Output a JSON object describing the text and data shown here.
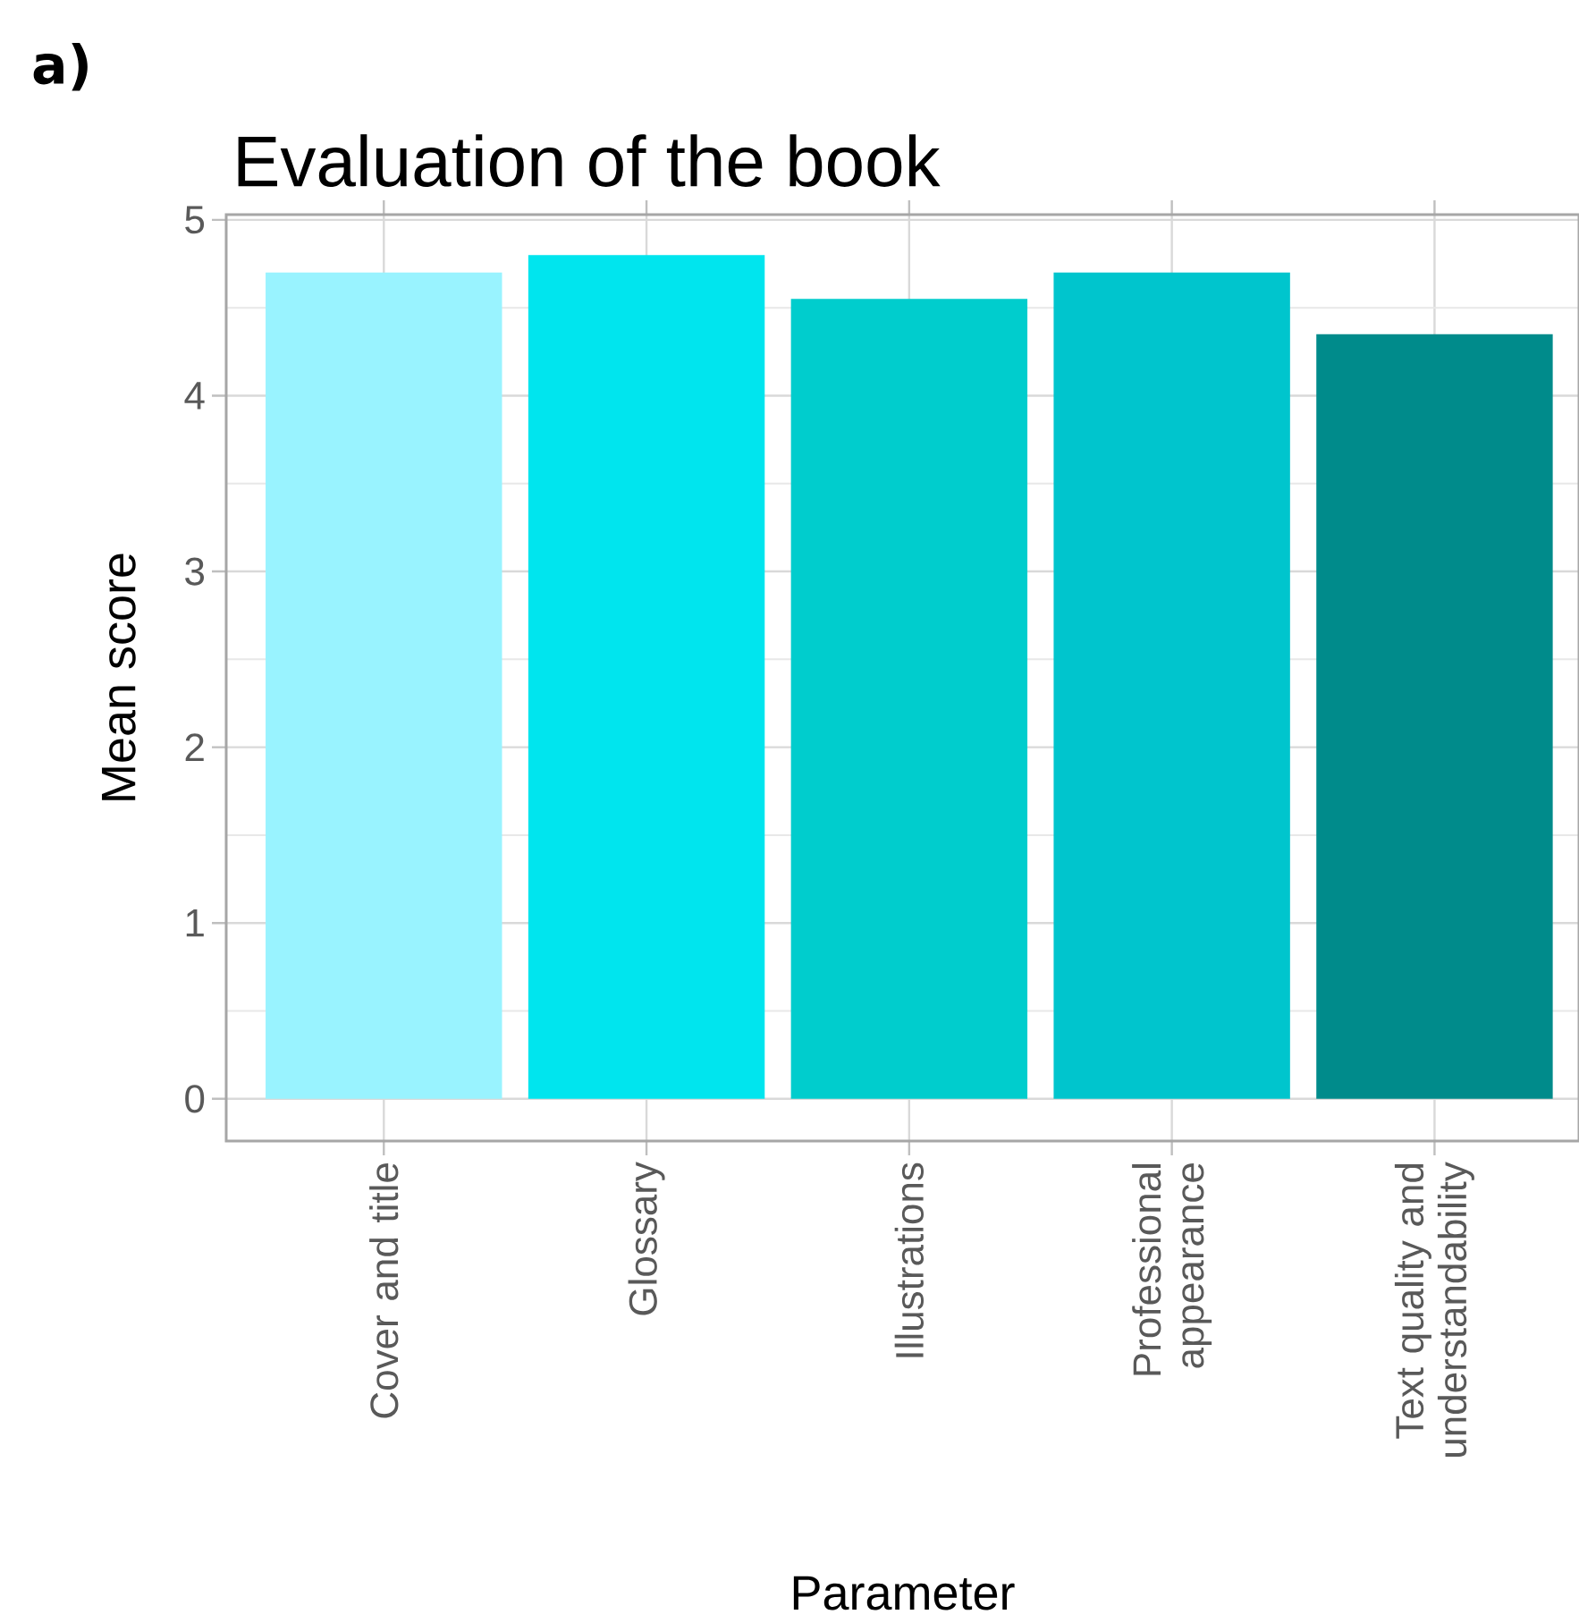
{
  "chart_data": {
    "type": "bar",
    "title": "Evaluation of the book",
    "xlabel": "Parameter",
    "ylabel": "Mean score",
    "annotations": [
      "a)"
    ],
    "categories": [
      "Cover and title",
      "Glossary",
      "Illustrations",
      "Professional appearance",
      "Text quality and understandability"
    ],
    "values": [
      4.7,
      4.8,
      4.55,
      4.7,
      4.35
    ],
    "colors": [
      "#99f3ff",
      "#00e5ee",
      "#00cdcd",
      "#00c5cd",
      "#008b8b"
    ],
    "ylim": [
      -0.24,
      5.03
    ],
    "yticks": [
      0,
      1,
      2,
      3,
      4,
      5
    ],
    "grid": true
  }
}
